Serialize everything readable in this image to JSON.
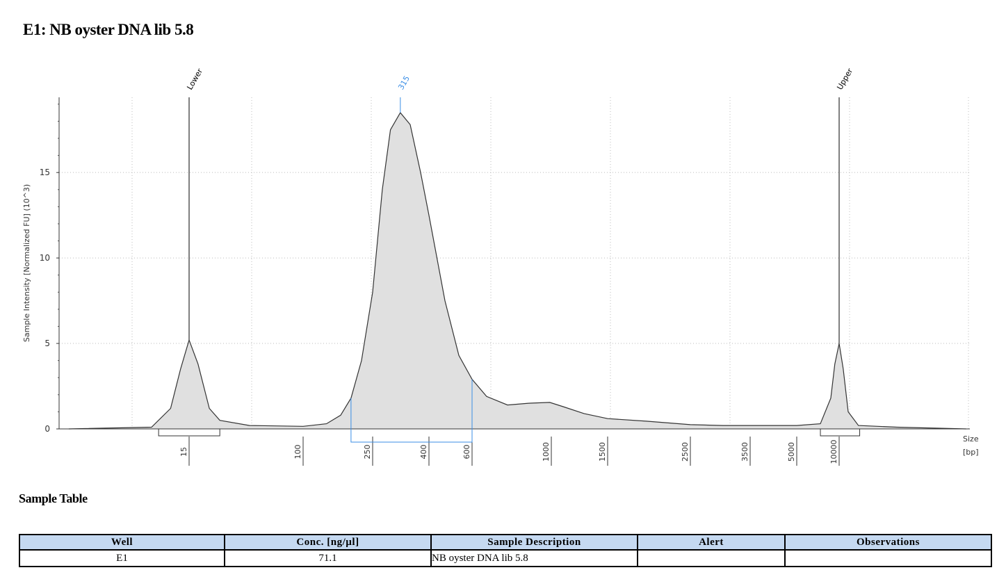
{
  "header": {
    "title": "E1: NB oyster DNA lib 5.8"
  },
  "chart_data": {
    "type": "line",
    "y_label": "Sample Intensity [Normalized FU] (10^3)",
    "x_label": "Size",
    "x_unit": "[bp]",
    "log_scale": false,
    "grid": true,
    "xlim": [
      1.7,
      85000
    ],
    "xticks": [
      15,
      100,
      250,
      400,
      600,
      1000,
      1500,
      2500,
      3500,
      5000,
      10000
    ],
    "ylim": [
      0,
      19.4
    ],
    "yticks": [
      0,
      5,
      10,
      15
    ],
    "series": [
      {
        "color": "#e0e0e0",
        "x": [
          2,
          8,
          11,
          13,
          15,
          17.4,
          21,
          25,
          41,
          100,
          136,
          164,
          188,
          216,
          250,
          271,
          290,
          315,
          342,
          373,
          400,
          465,
          530,
          600,
          659,
          754,
          863,
          990,
          1089,
          1265,
          1500,
          1905,
          2500,
          3005,
          5000,
          7360,
          8730,
          9320,
          10000,
          10700,
          11600,
          13700,
          25700,
          80000
        ],
        "values": [
          0,
          0.1,
          1.2,
          3.5,
          5.2,
          3.8,
          1.2,
          0.5,
          0.2,
          0.15,
          0.3,
          0.8,
          1.8,
          4,
          8,
          14,
          17.5,
          18.5,
          17.8,
          15,
          12.5,
          7.5,
          4.3,
          2.9,
          1.9,
          1.4,
          1.5,
          1.55,
          1.3,
          0.9,
          0.6,
          0.45,
          0.25,
          0.2,
          0.2,
          0.3,
          1.8,
          3.8,
          5.0,
          3.5,
          1.0,
          0.2,
          0.1,
          0
        ]
      }
    ],
    "markers": [
      {
        "label": "Lower",
        "x": 15,
        "color": "#000000",
        "range": [
          9,
          25
        ]
      },
      {
        "label": "315",
        "x": 315,
        "color": "#3a8ee6"
      },
      {
        "label": "Upper",
        "x": 10000,
        "color": "#000000",
        "range": [
          7360,
          14000
        ]
      }
    ],
    "region": {
      "from": 188,
      "to": 600,
      "color": "#3a8ee6"
    }
  },
  "section": {
    "title": "Sample Table"
  },
  "table": {
    "columns": [
      "Well",
      "Conc. [ng/µl]",
      "Sample Description",
      "Alert",
      "Observations"
    ],
    "rows": [
      [
        "E1",
        "71.1",
        "NB oyster DNA lib 5.8",
        "",
        ""
      ]
    ]
  }
}
